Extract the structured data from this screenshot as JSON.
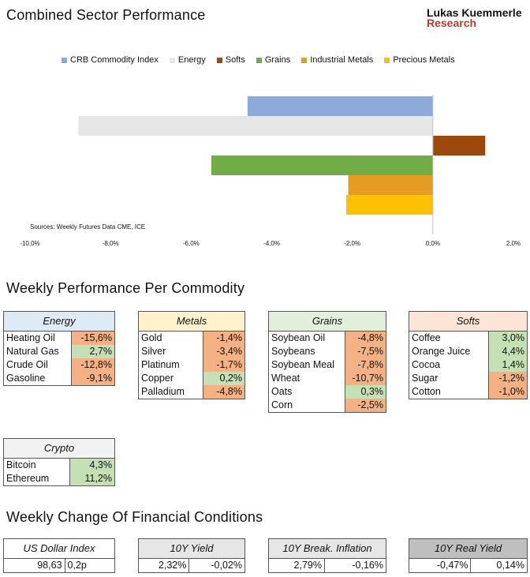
{
  "header": {
    "title": "Combined Sector Performance",
    "logo_line1": "Lukas Kuemmerle",
    "logo_line2": "Research"
  },
  "chart_data": {
    "type": "bar",
    "orientation": "horizontal",
    "title": "Combined Sector Performance",
    "categories": [
      "CRB Commodity Index",
      "Energy",
      "Softs",
      "Grains",
      "Industrial Metals",
      "Precious Metals"
    ],
    "values": [
      -4.6,
      -8.8,
      1.3,
      -5.5,
      -2.1,
      -2.15
    ],
    "colors": [
      "#8eaadb",
      "#e7e6e6",
      "#9e480e",
      "#70ad47",
      "#e69b23",
      "#ffc000"
    ],
    "xlim": [
      -10,
      2
    ],
    "xticks": [
      "-10,0%",
      "-8,0%",
      "-6,0%",
      "-4,0%",
      "-2,0%",
      "0,0%",
      "2,0%"
    ],
    "xtick_values": [
      -10,
      -8,
      -6,
      -4,
      -2,
      0,
      2
    ],
    "legend_position": "top",
    "source": "Sources: Weekly Futures Data CME, ICE"
  },
  "sections": {
    "weekly_title": "Weekly Performance Per Commodity",
    "financial_title": "Weekly Change Of Financial Conditions"
  },
  "tables": {
    "energy": {
      "title": "Energy",
      "header_color": "#ddebf7",
      "rows": [
        {
          "name": "Heating Oil",
          "value": "-15,6%",
          "sign": "neg"
        },
        {
          "name": "Natural Gas",
          "value": "2,7%",
          "sign": "pos"
        },
        {
          "name": "Crude Oil",
          "value": "-12,8%",
          "sign": "neg"
        },
        {
          "name": "Gasoline",
          "value": "-9,1%",
          "sign": "neg"
        }
      ]
    },
    "metals": {
      "title": "Metals",
      "header_color": "#fff2cc",
      "rows": [
        {
          "name": "Gold",
          "value": "-1,4%",
          "sign": "neg"
        },
        {
          "name": "Silver",
          "value": "-3,4%",
          "sign": "neg"
        },
        {
          "name": "Platinum",
          "value": "-1,7%",
          "sign": "neg"
        },
        {
          "name": "Copper",
          "value": "0,2%",
          "sign": "pos"
        },
        {
          "name": "Palladium",
          "value": "-4,8%",
          "sign": "neg"
        }
      ]
    },
    "grains": {
      "title": "Grains",
      "header_color": "#e2efda",
      "rows": [
        {
          "name": "Soybean Oil",
          "value": "-4,8%",
          "sign": "neg"
        },
        {
          "name": "Soybeans",
          "value": "-7,5%",
          "sign": "neg"
        },
        {
          "name": "Soybean Meal",
          "value": "-7,8%",
          "sign": "neg"
        },
        {
          "name": "Wheat",
          "value": "-10,7%",
          "sign": "neg"
        },
        {
          "name": "Oats",
          "value": "0,3%",
          "sign": "pos"
        },
        {
          "name": "Corn",
          "value": "-2,5%",
          "sign": "neg"
        }
      ]
    },
    "softs": {
      "title": "Softs",
      "header_color": "#fce4d6",
      "rows": [
        {
          "name": "Coffee",
          "value": "3,0%",
          "sign": "pos"
        },
        {
          "name": "Orange Juice",
          "value": "4,4%",
          "sign": "pos"
        },
        {
          "name": "Cocoa",
          "value": "1,4%",
          "sign": "pos"
        },
        {
          "name": "Sugar",
          "value": "-1,2%",
          "sign": "neg"
        },
        {
          "name": "Cotton",
          "value": "-1,0%",
          "sign": "neg"
        }
      ]
    },
    "crypto": {
      "title": "Crypto",
      "header_color": "#f2f2f2",
      "rows": [
        {
          "name": "Bitcoin",
          "value": "4,3%",
          "sign": "pos"
        },
        {
          "name": "Ethereum",
          "value": "11,2%",
          "sign": "pos"
        }
      ]
    }
  },
  "financial": [
    {
      "title": "US Dollar Index",
      "header_color": "#ffffff",
      "value": "98,63",
      "change": "0,2p"
    },
    {
      "title": "10Y Yield",
      "header_color": "#e7e6e6",
      "value": "2,32%",
      "change": "-0,02%"
    },
    {
      "title": "10Y Break. Inflation",
      "header_color": "#e7e6e6",
      "value": "2,79%",
      "change": "-0,16%"
    },
    {
      "title": "10Y Real Yield",
      "header_color": "#bfbfbf",
      "value": "-0,47%",
      "change": "0,14%"
    }
  ]
}
